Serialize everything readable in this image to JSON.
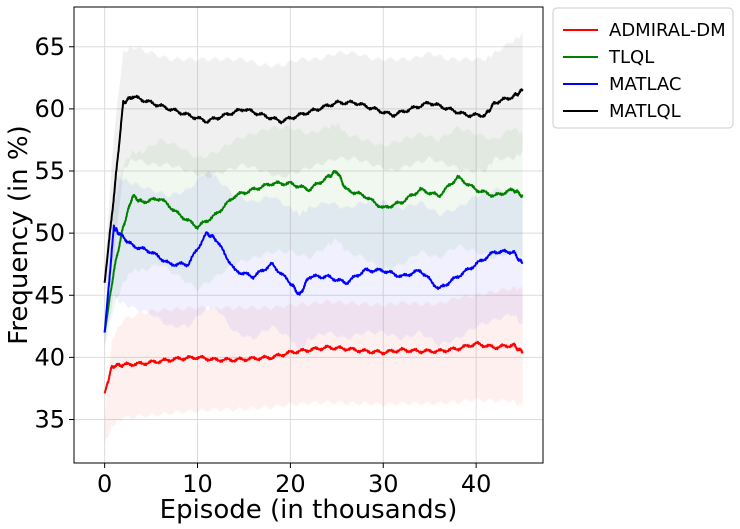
{
  "chart_data": {
    "type": "line",
    "xlabel": "Episode (in thousands)",
    "ylabel": "Frequency (in %)",
    "xlim": [
      -3.3,
      47.2
    ],
    "ylim": [
      31.5,
      68.2
    ],
    "xticks": [
      0,
      10,
      20,
      30,
      40
    ],
    "yticks": [
      35,
      40,
      45,
      50,
      55,
      60,
      65
    ],
    "grid": true,
    "legend_position": "outside top-right",
    "series": [
      {
        "name": "ADMIRAL-DM",
        "color": "#ff0000",
        "x": [
          0,
          0.8,
          2,
          4,
          6,
          8,
          10,
          12,
          14,
          16,
          18,
          20,
          22,
          24,
          26,
          28,
          30,
          32,
          34,
          36,
          38,
          40,
          42,
          44,
          45
        ],
        "y": [
          37.1,
          39.3,
          39.4,
          39.5,
          39.7,
          39.9,
          40.0,
          39.8,
          39.8,
          39.9,
          40.0,
          40.4,
          40.6,
          40.8,
          40.7,
          40.5,
          40.4,
          40.6,
          40.5,
          40.5,
          40.7,
          41.1,
          40.8,
          41.0,
          40.4
        ],
        "band_upper": [
          35.0,
          41.5,
          43.0,
          43.6,
          43.8,
          43.9,
          44.0,
          44.0,
          44.0,
          44.0,
          44.0,
          44.2,
          44.3,
          44.5,
          44.4,
          44.3,
          44.2,
          44.4,
          44.3,
          44.3,
          44.8,
          45.0,
          45.3,
          45.6,
          45.5
        ],
        "band_lower": [
          33.0,
          34.5,
          35.1,
          35.3,
          35.4,
          35.6,
          35.7,
          35.8,
          35.8,
          35.9,
          36.0,
          36.2,
          36.3,
          36.4,
          36.3,
          36.3,
          36.2,
          36.3,
          36.3,
          36.3,
          36.4,
          36.6,
          36.5,
          36.5,
          36.0
        ]
      },
      {
        "name": "TLQL",
        "color": "#008000",
        "x": [
          0,
          1,
          2,
          3,
          4,
          6,
          8,
          10,
          12,
          14,
          16,
          18,
          20,
          22,
          24,
          25,
          26,
          28,
          30,
          32,
          34,
          36,
          38,
          40,
          42,
          44,
          45
        ],
        "y": [
          42.0,
          47.0,
          50.5,
          53.0,
          52.5,
          52.8,
          51.5,
          50.5,
          51.5,
          53.0,
          53.5,
          54.0,
          54.0,
          53.5,
          54.5,
          55.0,
          53.5,
          53.0,
          52.0,
          52.5,
          53.5,
          53.0,
          54.5,
          53.5,
          53.0,
          53.5,
          53.0
        ],
        "band_upper": [
          43.0,
          52.0,
          55.5,
          56.5,
          56.5,
          57.5,
          57.0,
          56.0,
          56.5,
          57.5,
          58.0,
          58.5,
          58.5,
          58.0,
          58.5,
          58.8,
          58.0,
          57.5,
          57.0,
          57.5,
          58.0,
          57.5,
          58.5,
          58.0,
          57.5,
          58.5,
          58.0
        ],
        "band_lower": [
          41.0,
          44.0,
          46.0,
          47.0,
          47.0,
          47.5,
          46.5,
          45.5,
          46.5,
          47.5,
          48.0,
          48.5,
          48.5,
          48.0,
          49.0,
          49.5,
          48.5,
          48.0,
          47.0,
          47.5,
          48.5,
          48.0,
          49.0,
          48.5,
          48.0,
          48.5,
          48.0
        ]
      },
      {
        "name": "MATLAC",
        "color": "#0000ff",
        "x": [
          0,
          1,
          1.5,
          3,
          5,
          7,
          9,
          11,
          12,
          14,
          16,
          18,
          20,
          21,
          22,
          24,
          26,
          28,
          30,
          32,
          34,
          36,
          38,
          40,
          42,
          44,
          45
        ],
        "y": [
          42.0,
          50.5,
          50.0,
          49.0,
          48.5,
          47.5,
          47.5,
          50.0,
          49.5,
          47.0,
          46.5,
          47.5,
          46.0,
          45.0,
          46.5,
          46.5,
          46.0,
          47.0,
          47.0,
          46.5,
          47.0,
          45.5,
          46.5,
          47.5,
          48.5,
          48.5,
          47.5
        ],
        "band_upper": [
          43.0,
          54.0,
          54.5,
          54.0,
          53.5,
          53.0,
          53.5,
          55.0,
          54.5,
          53.0,
          52.5,
          53.0,
          52.0,
          51.5,
          52.0,
          52.5,
          52.0,
          52.5,
          52.5,
          52.0,
          52.5,
          51.5,
          52.0,
          53.0,
          53.5,
          53.5,
          53.0
        ],
        "band_lower": [
          41.0,
          45.0,
          44.5,
          44.0,
          43.5,
          42.5,
          42.5,
          44.0,
          44.0,
          42.0,
          41.5,
          42.5,
          41.5,
          40.5,
          41.5,
          42.0,
          41.5,
          42.0,
          42.0,
          41.5,
          42.0,
          41.0,
          41.5,
          42.5,
          43.0,
          43.5,
          42.5
        ]
      },
      {
        "name": "MATLQL",
        "color": "#000000",
        "x": [
          0,
          1,
          2,
          3,
          5,
          7,
          9,
          11,
          13,
          15,
          17,
          19,
          21,
          23,
          25,
          27,
          29,
          31,
          33,
          35,
          37,
          39,
          41,
          42,
          44,
          45
        ],
        "y": [
          46.0,
          53.0,
          60.5,
          61.0,
          60.5,
          60.0,
          59.5,
          59.0,
          59.5,
          60.0,
          59.5,
          59.0,
          59.5,
          60.0,
          60.5,
          60.5,
          60.0,
          59.5,
          60.0,
          60.5,
          60.0,
          59.5,
          59.5,
          60.5,
          61.0,
          61.5
        ],
        "band_upper": [
          47.0,
          58.0,
          64.5,
          65.0,
          64.5,
          64.0,
          64.0,
          64.0,
          64.0,
          64.0,
          63.5,
          63.5,
          64.0,
          64.0,
          64.5,
          64.5,
          64.0,
          64.0,
          64.0,
          64.5,
          64.0,
          64.0,
          64.0,
          64.5,
          65.5,
          66.0
        ],
        "band_lower": [
          45.0,
          48.0,
          55.0,
          56.0,
          55.5,
          55.5,
          55.0,
          54.5,
          55.0,
          55.5,
          55.0,
          54.5,
          55.0,
          55.5,
          56.0,
          56.0,
          55.5,
          55.0,
          55.5,
          56.0,
          55.5,
          55.0,
          55.0,
          56.0,
          56.0,
          56.5
        ]
      }
    ]
  }
}
